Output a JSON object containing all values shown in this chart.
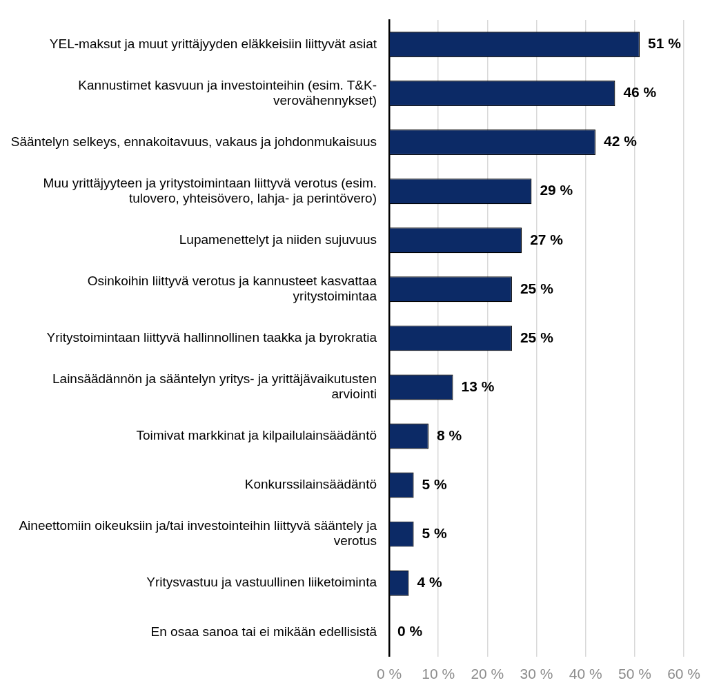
{
  "chart_data": {
    "type": "bar",
    "orientation": "horizontal",
    "categories": [
      "YEL-maksut ja muut yrittäjyyden eläkkeisiin liittyvät asiat",
      "Kannustimet kasvuun ja investointeihin (esim. T&K- verovähennykset)",
      "Sääntelyn selkeys, ennakoitavuus, vakaus ja johdonmukaisuus",
      "Muu yrittäjyyteen ja yritystoimintaan liittyvä verotus (esim. tulovero, yhteisövero, lahja- ja perintövero)",
      "Lupamenettelyt ja niiden sujuvuus",
      "Osinkoihin liittyvä verotus ja kannusteet kasvattaa yritystoimintaa",
      "Yritystoimintaan liittyvä hallinnollinen taakka ja byrokratia",
      "Lainsäädännön ja sääntelyn yritys- ja yrittäjävaikutusten arviointi",
      "Toimivat markkinat ja kilpailulainsäädäntö",
      "Konkurssilainsäädäntö",
      "Aineettomiin oikeuksiin ja/tai investointeihin liittyvä sääntely ja verotus",
      "Yritysvastuu ja vastuullinen liiketoiminta",
      "En osaa sanoa tai ei mikään edellisistä"
    ],
    "values": [
      51,
      46,
      42,
      29,
      27,
      25,
      25,
      13,
      8,
      5,
      5,
      4,
      0
    ],
    "value_labels": [
      "51 %",
      "46 %",
      "42 %",
      "29 %",
      "27 %",
      "25 %",
      "25 %",
      "13 %",
      "8 %",
      "5 %",
      "5 %",
      "4 %",
      "0 %"
    ],
    "color": "#0c2a66",
    "xlim": [
      0,
      60
    ],
    "xticks": [
      {
        "value": 0,
        "label": "0 %"
      },
      {
        "value": 10,
        "label": "10 %"
      },
      {
        "value": 20,
        "label": "20 %"
      },
      {
        "value": 30,
        "label": "30 %"
      },
      {
        "value": 40,
        "label": "40 %"
      },
      {
        "value": 50,
        "label": "50 %"
      },
      {
        "value": 60,
        "label": "60 %"
      }
    ],
    "grid": "x",
    "legend": false
  }
}
